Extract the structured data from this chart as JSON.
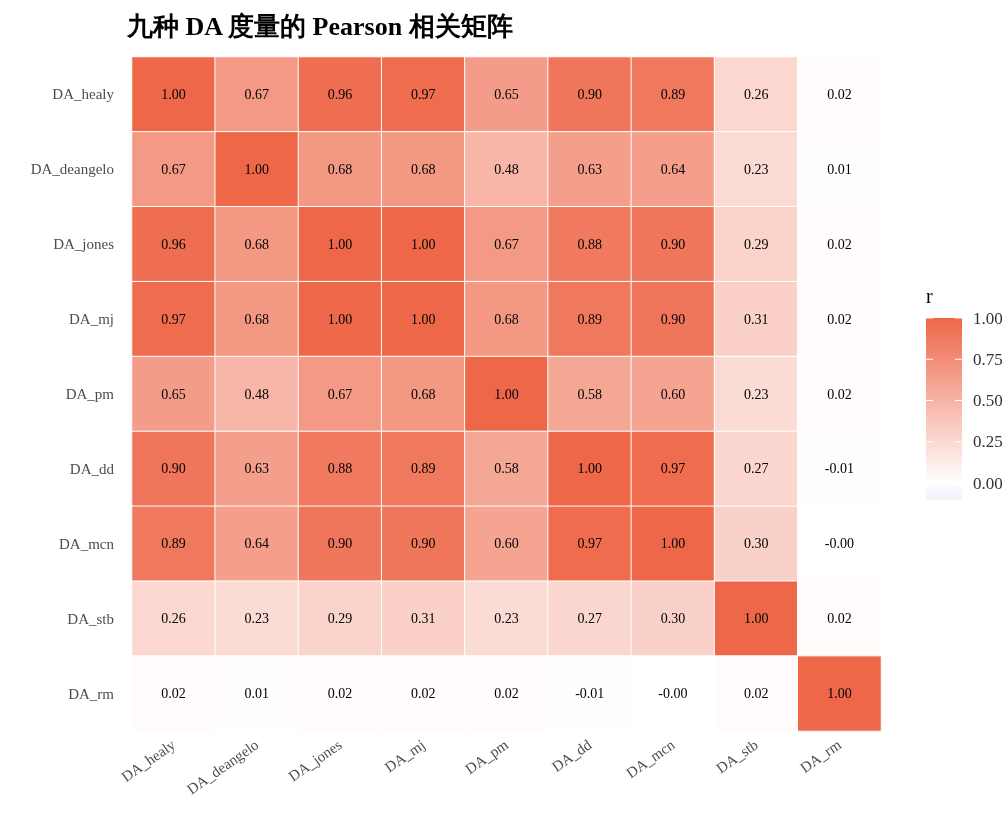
{
  "chart_data": {
    "type": "heatmap",
    "title": "九种 DA 度量的 Pearson 相关矩阵",
    "clabel": "r",
    "categories": [
      "DA_healy",
      "DA_deangelo",
      "DA_jones",
      "DA_mj",
      "DA_pm",
      "DA_dd",
      "DA_mcn",
      "DA_stb",
      "DA_rm"
    ],
    "y_categories": [
      "DA_healy",
      "DA_deangelo",
      "DA_jones",
      "DA_mj",
      "DA_pm",
      "DA_dd",
      "DA_mcn",
      "DA_stb",
      "DA_rm"
    ],
    "cells": [
      [
        1,
        0.67,
        0.96,
        0.97,
        0.65,
        0.9,
        0.89,
        0.26,
        0.02
      ],
      [
        0.67,
        1,
        0.68,
        0.68,
        0.48,
        0.63,
        0.64,
        0.23,
        0.01
      ],
      [
        0.96,
        0.68,
        1,
        1,
        0.67,
        0.88,
        0.9,
        0.29,
        0.02
      ],
      [
        0.97,
        0.68,
        1,
        1,
        0.68,
        0.89,
        0.9,
        0.31,
        0.02
      ],
      [
        0.65,
        0.48,
        0.67,
        0.68,
        1,
        0.58,
        0.6,
        0.23,
        0.02
      ],
      [
        0.9,
        0.63,
        0.88,
        0.89,
        0.58,
        1,
        0.97,
        0.27,
        -0.01
      ],
      [
        0.89,
        0.64,
        0.9,
        0.9,
        0.6,
        0.97,
        1,
        0.3,
        0
      ],
      [
        0.26,
        0.23,
        0.29,
        0.31,
        0.23,
        0.27,
        0.3,
        1,
        0.02
      ],
      [
        0.02,
        0.01,
        0.02,
        0.02,
        0.02,
        -0.01,
        0,
        0.02,
        1
      ]
    ],
    "cell_labels": [
      [
        "1.00",
        "0.67",
        "0.96",
        "0.97",
        "0.65",
        "0.90",
        "0.89",
        "0.26",
        "0.02"
      ],
      [
        "0.67",
        "1.00",
        "0.68",
        "0.68",
        "0.48",
        "0.63",
        "0.64",
        "0.23",
        "0.01"
      ],
      [
        "0.96",
        "0.68",
        "1.00",
        "1.00",
        "0.67",
        "0.88",
        "0.90",
        "0.29",
        "0.02"
      ],
      [
        "0.97",
        "0.68",
        "1.00",
        "1.00",
        "0.68",
        "0.89",
        "0.90",
        "0.31",
        "0.02"
      ],
      [
        "0.65",
        "0.48",
        "0.67",
        "0.68",
        "1.00",
        "0.58",
        "0.60",
        "0.23",
        "0.02"
      ],
      [
        "0.90",
        "0.63",
        "0.88",
        "0.89",
        "0.58",
        "1.00",
        "0.97",
        "0.27",
        "-0.01"
      ],
      [
        "0.89",
        "0.64",
        "0.90",
        "0.90",
        "0.60",
        "0.97",
        "1.00",
        "0.30",
        "-0.00"
      ],
      [
        "0.26",
        "0.23",
        "0.29",
        "0.31",
        "0.23",
        "0.27",
        "0.30",
        "1.00",
        "0.02"
      ],
      [
        "0.02",
        "0.01",
        "0.02",
        "0.02",
        "0.02",
        "-0.01",
        "-0.00",
        "0.02",
        "1.00"
      ]
    ],
    "colors": [
      "#edf2f9",
      "#ffffff",
      "#ee6749"
    ],
    "clim": [
      -0.1,
      1
    ],
    "cticks": [
      {
        "value": 0,
        "label": "0.00"
      },
      {
        "value": 0.25,
        "label": "0.25"
      },
      {
        "value": 0.5,
        "label": "0.50"
      },
      {
        "value": 0.75,
        "label": "0.75"
      },
      {
        "value": 1,
        "label": "1.00"
      }
    ]
  }
}
